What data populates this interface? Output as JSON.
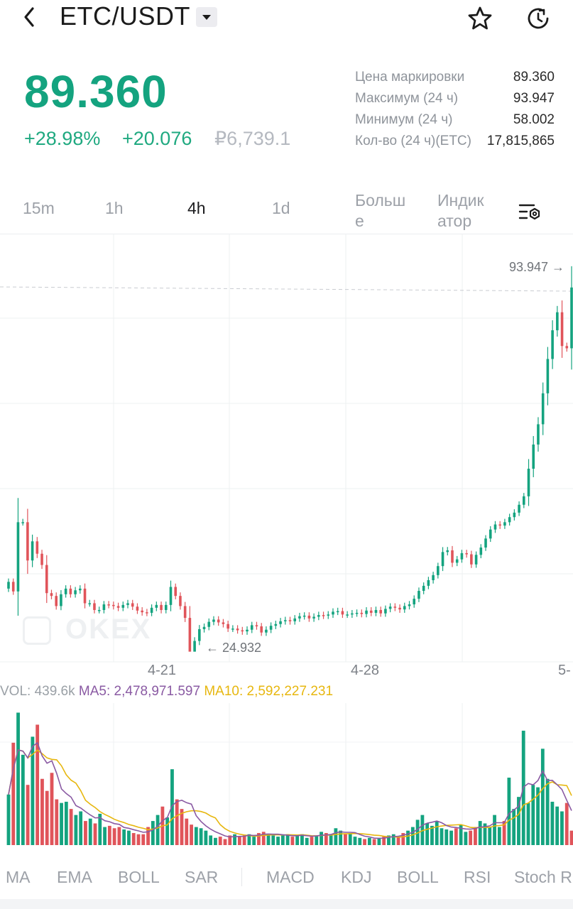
{
  "header": {
    "pair": "ETC/USDT",
    "icons": {
      "back": "chevron-left-icon",
      "dropdown": "caret-down-icon",
      "favorite": "star-icon",
      "history": "history-icon"
    }
  },
  "price": {
    "last": "89.360",
    "change_pct": "+28.98%",
    "change_abs": "+20.076",
    "fiat": "₽6,739.1"
  },
  "stats": [
    {
      "label": "Цена маркировки",
      "value": "89.360"
    },
    {
      "label": "Максимум (24 ч)",
      "value": "93.947"
    },
    {
      "label": "Минимум (24 ч)",
      "value": "58.002"
    },
    {
      "label": "Кол-во (24 ч)(ETC)",
      "value": "17,815,865"
    }
  ],
  "intervals": {
    "items": [
      "15m",
      "1h",
      "4h",
      "1d"
    ],
    "active": "4h",
    "more": [
      "Больш",
      "е"
    ],
    "indicators": [
      "Индик",
      "атор"
    ]
  },
  "chart": {
    "high_label": "93.947 →",
    "low_label": "← 24.932",
    "dates": [
      "4-21",
      "4-28",
      "5-"
    ],
    "watermark": "OKEX",
    "colors": {
      "up": "#14a37f",
      "down": "#e0545a",
      "ma5": "#8a5aa3",
      "ma10": "#e7b70f"
    }
  },
  "chart_data": {
    "type": "candlestick",
    "title": "",
    "x_labels": [
      "4-21",
      "4-28",
      "5-"
    ],
    "high_marker": 93.947,
    "low_marker": 24.932,
    "close_series": [
      37.0,
      35.3,
      47.6,
      47.6,
      40.8,
      44.2,
      42.0,
      40.0,
      35.0,
      34.5,
      32.7,
      34.8,
      35.8,
      34.8,
      35.5,
      35.8,
      33.2,
      33.2,
      32.0,
      32.0,
      33.0,
      32.9,
      32.7,
      32.4,
      32.9,
      33.2,
      32.6,
      31.9,
      31.6,
      31.5,
      32.4,
      32.9,
      32.0,
      32.9,
      36.1,
      34.5,
      32.7,
      30.6,
      24.6,
      26.5,
      28.6,
      29.0,
      29.9,
      30.3,
      29.8,
      29.5,
      28.7,
      28.7,
      28.4,
      28.2,
      28.5,
      29.3,
      29.1,
      28.0,
      28.5,
      29.2,
      29.5,
      30.0,
      30.2,
      30.0,
      30.5,
      30.9,
      31.0,
      30.5,
      30.8,
      31.1,
      31.0,
      31.2,
      31.7,
      31.8,
      31.2,
      31.2,
      31.4,
      31.5,
      31.3,
      31.9,
      31.5,
      32.0,
      31.4,
      32.2,
      32.6,
      32.4,
      32.1,
      32.7,
      33.0,
      34.0,
      35.4,
      36.3,
      37.3,
      38.2,
      39.8,
      42.3,
      42.6,
      40.4,
      41.0,
      42.1,
      41.9,
      40.1,
      41.8,
      43.1,
      44.7,
      46.3,
      47.2,
      47.0,
      47.6,
      48.5,
      49.3,
      50.7,
      52.2,
      57.1,
      61.4,
      65.0,
      70.5,
      76.6,
      81.7,
      84.9,
      78.9,
      78.5,
      89.3
    ],
    "volume": {
      "label": "VOL: 439.6k",
      "ma5": "MA5: 2,478,971.597",
      "ma10": "MA10: 2,592,227.231",
      "values": [
        4.2,
        8.5,
        11.0,
        7.5,
        5.0,
        9.0,
        10.0,
        5.5,
        4.5,
        6.0,
        3.8,
        3.5,
        3.6,
        3.0,
        2.5,
        2.8,
        2.0,
        2.2,
        1.8,
        2.6,
        1.5,
        1.6,
        1.4,
        1.5,
        1.3,
        1.2,
        1.0,
        0.9,
        0.9,
        1.5,
        2.0,
        2.5,
        3.2,
        2.3,
        6.3,
        3.8,
        3.0,
        2.2,
        1.7,
        1.5,
        1.4,
        1.2,
        0.8,
        0.6,
        0.7,
        0.5,
        0.8,
        0.9,
        0.7,
        0.8,
        0.9,
        0.7,
        1.0,
        1.1,
        0.9,
        0.8,
        0.7,
        0.8,
        0.9,
        0.7,
        0.8,
        0.9,
        0.6,
        0.7,
        0.8,
        1.1,
        1.0,
        0.8,
        1.4,
        1.2,
        0.9,
        1.0,
        0.7,
        0.6,
        0.5,
        0.6,
        0.5,
        0.6,
        0.7,
        0.8,
        0.9,
        0.7,
        1.0,
        1.2,
        1.5,
        2.1,
        2.5,
        1.8,
        1.6,
        2.0,
        1.4,
        1.3,
        1.2,
        1.4,
        1.7,
        1.1,
        1.2,
        1.5,
        2.0,
        1.8,
        1.5,
        2.5,
        1.5,
        2.0,
        5.6,
        3.0,
        4.0,
        9.5,
        3.5,
        5.0,
        4.8,
        8.0,
        5.5,
        3.6,
        3.2,
        2.8,
        3.5,
        1.2
      ]
    }
  },
  "indicators_bar": [
    "MA",
    "EMA",
    "BOLL",
    "SAR",
    "MACD",
    "KDJ",
    "BOLL",
    "RSI",
    "Stoch RSI"
  ]
}
